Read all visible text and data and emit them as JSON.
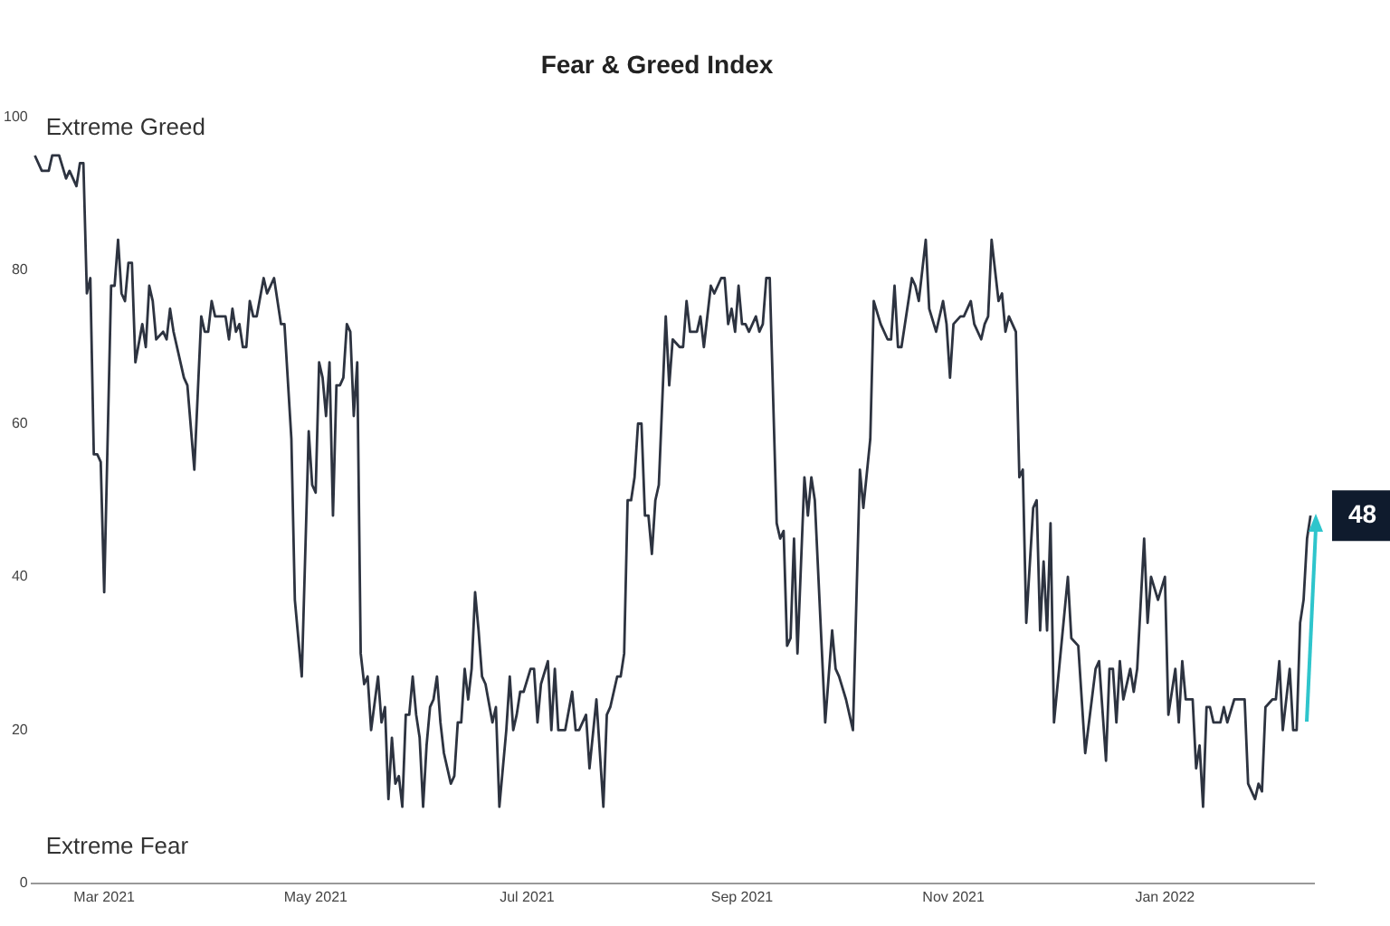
{
  "chart_data": {
    "type": "line",
    "title": "Fear & Greed Index",
    "x": [
      "2021-02-09",
      "2021-02-11",
      "2021-02-13",
      "2021-02-14",
      "2021-02-16",
      "2021-02-18",
      "2021-02-19",
      "2021-02-21",
      "2021-02-22",
      "2021-02-23",
      "2021-02-24",
      "2021-02-25",
      "2021-02-26",
      "2021-02-27",
      "2021-02-28",
      "2021-03-01",
      "2021-03-03",
      "2021-03-04",
      "2021-03-05",
      "2021-03-06",
      "2021-03-07",
      "2021-03-08",
      "2021-03-09",
      "2021-03-10",
      "2021-03-12",
      "2021-03-13",
      "2021-03-14",
      "2021-03-15",
      "2021-03-16",
      "2021-03-18",
      "2021-03-19",
      "2021-03-20",
      "2021-03-21",
      "2021-03-24",
      "2021-03-25",
      "2021-03-27",
      "2021-03-29",
      "2021-03-30",
      "2021-03-31",
      "2021-04-01",
      "2021-04-02",
      "2021-04-05",
      "2021-04-06",
      "2021-04-07",
      "2021-04-08",
      "2021-04-09",
      "2021-04-10",
      "2021-04-11",
      "2021-04-12",
      "2021-04-13",
      "2021-04-14",
      "2021-04-16",
      "2021-04-17",
      "2021-04-19",
      "2021-04-21",
      "2021-04-22",
      "2021-04-24",
      "2021-04-25",
      "2021-04-27",
      "2021-04-29",
      "2021-04-30",
      "2021-05-01",
      "2021-05-02",
      "2021-05-03",
      "2021-05-04",
      "2021-05-05",
      "2021-05-06",
      "2021-05-07",
      "2021-05-08",
      "2021-05-09",
      "2021-05-10",
      "2021-05-11",
      "2021-05-12",
      "2021-05-13",
      "2021-05-14",
      "2021-05-15",
      "2021-05-16",
      "2021-05-17",
      "2021-05-19",
      "2021-05-20",
      "2021-05-21",
      "2021-05-22",
      "2021-05-23",
      "2021-05-24",
      "2021-05-25",
      "2021-05-26",
      "2021-05-27",
      "2021-05-28",
      "2021-05-29",
      "2021-05-30",
      "2021-05-31",
      "2021-06-01",
      "2021-06-02",
      "2021-06-03",
      "2021-06-04",
      "2021-06-05",
      "2021-06-06",
      "2021-06-07",
      "2021-06-09",
      "2021-06-10",
      "2021-06-11",
      "2021-06-12",
      "2021-06-13",
      "2021-06-14",
      "2021-06-15",
      "2021-06-16",
      "2021-06-17",
      "2021-06-18",
      "2021-06-19",
      "2021-06-21",
      "2021-06-22",
      "2021-06-23",
      "2021-06-25",
      "2021-06-26",
      "2021-06-27",
      "2021-06-28",
      "2021-06-29",
      "2021-06-30",
      "2021-07-02",
      "2021-07-03",
      "2021-07-04",
      "2021-07-05",
      "2021-07-07",
      "2021-07-08",
      "2021-07-09",
      "2021-07-10",
      "2021-07-12",
      "2021-07-14",
      "2021-07-15",
      "2021-07-16",
      "2021-07-18",
      "2021-07-19",
      "2021-07-21",
      "2021-07-23",
      "2021-07-24",
      "2021-07-25",
      "2021-07-27",
      "2021-07-28",
      "2021-07-29",
      "2021-07-30",
      "2021-07-31",
      "2021-08-01",
      "2021-08-02",
      "2021-08-03",
      "2021-08-04",
      "2021-08-05",
      "2021-08-06",
      "2021-08-07",
      "2021-08-08",
      "2021-08-10",
      "2021-08-11",
      "2021-08-12",
      "2021-08-14",
      "2021-08-15",
      "2021-08-16",
      "2021-08-17",
      "2021-08-19",
      "2021-08-20",
      "2021-08-21",
      "2021-08-23",
      "2021-08-24",
      "2021-08-26",
      "2021-08-27",
      "2021-08-28",
      "2021-08-29",
      "2021-08-30",
      "2021-08-31",
      "2021-09-01",
      "2021-09-02",
      "2021-09-03",
      "2021-09-05",
      "2021-09-06",
      "2021-09-07",
      "2021-09-08",
      "2021-09-09",
      "2021-09-11",
      "2021-09-12",
      "2021-09-13",
      "2021-09-14",
      "2021-09-15",
      "2021-09-16",
      "2021-09-17",
      "2021-09-19",
      "2021-09-20",
      "2021-09-21",
      "2021-09-22",
      "2021-09-25",
      "2021-09-27",
      "2021-09-28",
      "2021-09-29",
      "2021-10-01",
      "2021-10-03",
      "2021-10-05",
      "2021-10-06",
      "2021-10-08",
      "2021-10-09",
      "2021-10-11",
      "2021-10-13",
      "2021-10-14",
      "2021-10-15",
      "2021-10-16",
      "2021-10-17",
      "2021-10-20",
      "2021-10-21",
      "2021-10-22",
      "2021-10-24",
      "2021-10-25",
      "2021-10-27",
      "2021-10-29",
      "2021-10-30",
      "2021-10-31",
      "2021-11-01",
      "2021-11-03",
      "2021-11-04",
      "2021-11-06",
      "2021-11-07",
      "2021-11-09",
      "2021-11-10",
      "2021-11-11",
      "2021-11-12",
      "2021-11-14",
      "2021-11-15",
      "2021-11-16",
      "2021-11-17",
      "2021-11-19",
      "2021-11-20",
      "2021-11-21",
      "2021-11-22",
      "2021-11-24",
      "2021-11-25",
      "2021-11-26",
      "2021-11-27",
      "2021-11-28",
      "2021-11-29",
      "2021-11-30",
      "2021-12-04",
      "2021-12-05",
      "2021-12-07",
      "2021-12-09",
      "2021-12-12",
      "2021-12-13",
      "2021-12-15",
      "2021-12-16",
      "2021-12-17",
      "2021-12-18",
      "2021-12-19",
      "2021-12-20",
      "2021-12-22",
      "2021-12-23",
      "2021-12-24",
      "2021-12-26",
      "2021-12-27",
      "2021-12-28",
      "2021-12-30",
      "2022-01-01",
      "2022-01-02",
      "2022-01-04",
      "2022-01-05",
      "2022-01-06",
      "2022-01-07",
      "2022-01-09",
      "2022-01-10",
      "2022-01-11",
      "2022-01-12",
      "2022-01-13",
      "2022-01-14",
      "2022-01-15",
      "2022-01-17",
      "2022-01-18",
      "2022-01-19",
      "2022-01-21",
      "2022-01-24",
      "2022-01-25",
      "2022-01-27",
      "2022-01-28",
      "2022-01-29",
      "2022-01-30",
      "2022-02-01",
      "2022-02-02",
      "2022-02-03",
      "2022-02-04",
      "2022-02-06",
      "2022-02-07",
      "2022-02-08",
      "2022-02-09",
      "2022-02-10",
      "2022-02-11",
      "2022-02-12"
    ],
    "series": [
      {
        "color": "#2d3340",
        "values": [
          95,
          93,
          93,
          95,
          95,
          92,
          93,
          91,
          94,
          94,
          77,
          79,
          56,
          56,
          55,
          38,
          78,
          78,
          84,
          77,
          76,
          81,
          81,
          68,
          73,
          70,
          78,
          76,
          71,
          72,
          71,
          75,
          72,
          66,
          65,
          54,
          74,
          72,
          72,
          76,
          74,
          74,
          71,
          75,
          72,
          73,
          70,
          70,
          76,
          74,
          74,
          79,
          77,
          79,
          73,
          73,
          58,
          37,
          27,
          59,
          52,
          51,
          68,
          66,
          61,
          68,
          48,
          65,
          65,
          66,
          73,
          72,
          61,
          68,
          30,
          26,
          27,
          20,
          27,
          21,
          23,
          11,
          19,
          13,
          14,
          10,
          22,
          22,
          27,
          22,
          19,
          10,
          18,
          23,
          24,
          27,
          21,
          17,
          13,
          14,
          21,
          21,
          28,
          24,
          28,
          38,
          33,
          27,
          26,
          21,
          23,
          10,
          20,
          27,
          20,
          22,
          25,
          25,
          28,
          28,
          21,
          26,
          29,
          20,
          28,
          20,
          20,
          25,
          20,
          20,
          22,
          15,
          24,
          10,
          22,
          23,
          27,
          27,
          30,
          50,
          50,
          53,
          60,
          60,
          48,
          48,
          43,
          50,
          52,
          74,
          65,
          71,
          70,
          70,
          76,
          72,
          72,
          74,
          70,
          78,
          77,
          79,
          79,
          73,
          75,
          72,
          78,
          73,
          73,
          72,
          74,
          72,
          73,
          79,
          79,
          47,
          45,
          46,
          31,
          32,
          45,
          30,
          53,
          48,
          53,
          50,
          21,
          33,
          28,
          27,
          24,
          20,
          54,
          49,
          58,
          76,
          73,
          71,
          71,
          78,
          70,
          70,
          79,
          78,
          76,
          84,
          75,
          72,
          76,
          73,
          66,
          73,
          74,
          74,
          76,
          73,
          71,
          73,
          74,
          84,
          76,
          77,
          72,
          74,
          72,
          53,
          54,
          34,
          49,
          50,
          33,
          42,
          33,
          47,
          21,
          40,
          32,
          31,
          17,
          28,
          29,
          16,
          28,
          28,
          21,
          29,
          24,
          28,
          25,
          28,
          45,
          34,
          40,
          37,
          40,
          22,
          28,
          21,
          29,
          24,
          24,
          15,
          18,
          10,
          23,
          23,
          21,
          21,
          23,
          21,
          24,
          24,
          13,
          11,
          13,
          12,
          23,
          24,
          24,
          29,
          20,
          28,
          20,
          20,
          34,
          37,
          45,
          48
        ]
      }
    ],
    "xlim": [
      "2021-02-08",
      "2022-02-13"
    ],
    "xticks": [
      {
        "value": "2021-03",
        "label": "Mar 2021"
      },
      {
        "value": "2021-05",
        "label": "May 2021"
      },
      {
        "value": "2021-07",
        "label": "Jul 2021"
      },
      {
        "value": "2021-09",
        "label": "Sep 2021"
      },
      {
        "value": "2021-11",
        "label": "Nov 2021"
      },
      {
        "value": "2022-01",
        "label": "Jan 2022"
      }
    ],
    "ylim": [
      0,
      100
    ],
    "yticks": [
      0,
      20,
      40,
      60,
      80,
      100
    ],
    "annotations": [
      "Extreme Greed",
      "Extreme Fear",
      {
        "text": "48",
        "x": "2022-02-12",
        "y": 48
      }
    ]
  }
}
